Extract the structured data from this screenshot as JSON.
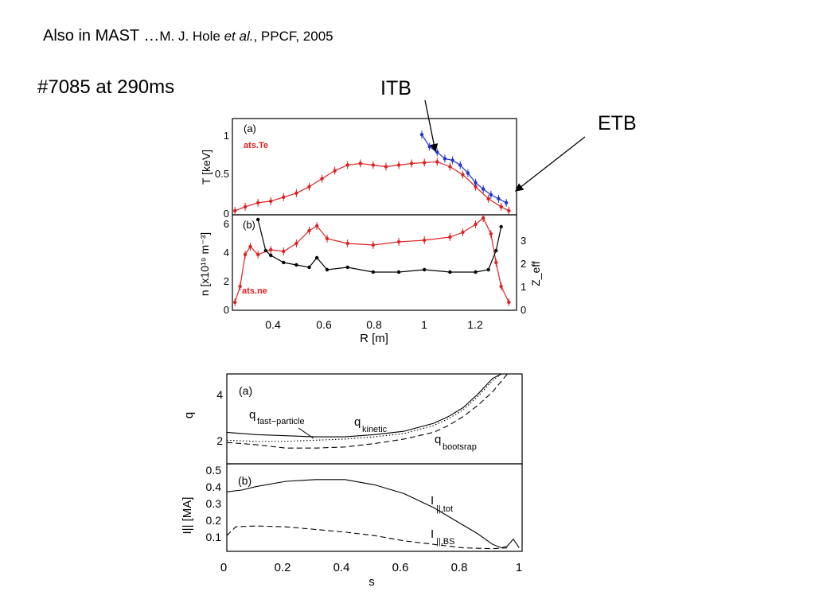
{
  "slide": {
    "title_main": "Also in MAST …",
    "title_ref_pre": "M. J. Hole ",
    "title_ref_em": "et al.",
    "title_ref_post": ", PPCF, 2005",
    "shot_label": "#7085 at 290ms",
    "itb_label": "ITB",
    "etb_label": "ETB"
  },
  "chart_data": [
    {
      "type": "scatter",
      "panel": "(a)",
      "ylabel": "T [keV]",
      "xlim": [
        0.25,
        1.36
      ],
      "ylim": [
        0,
        1.2
      ],
      "yticks": [
        "0",
        "0.5",
        "1"
      ],
      "annotation": "ats.Te",
      "series": [
        {
          "name": "ats.Te",
          "color": "#dd2222",
          "x": [
            0.26,
            0.3,
            0.35,
            0.4,
            0.45,
            0.5,
            0.55,
            0.6,
            0.65,
            0.7,
            0.75,
            0.8,
            0.85,
            0.9,
            0.95,
            1.0,
            1.05,
            1.1,
            1.15,
            1.2,
            1.25,
            1.3,
            1.33
          ],
          "y": [
            0.05,
            0.1,
            0.15,
            0.17,
            0.22,
            0.27,
            0.35,
            0.45,
            0.55,
            0.62,
            0.64,
            0.62,
            0.6,
            0.62,
            0.64,
            0.65,
            0.66,
            0.6,
            0.5,
            0.35,
            0.2,
            0.1,
            0.05
          ]
        },
        {
          "name": "",
          "color": "#2233cc",
          "x": [
            0.99,
            1.02,
            1.05,
            1.08,
            1.11,
            1.14,
            1.17,
            1.2,
            1.23,
            1.26,
            1.29,
            1.32
          ],
          "y": [
            1.0,
            0.85,
            0.78,
            0.7,
            0.68,
            0.62,
            0.52,
            0.4,
            0.32,
            0.25,
            0.2,
            0.15
          ]
        }
      ]
    },
    {
      "type": "scatter",
      "panel": "(b)",
      "ylabel": "n [x10¹⁹ m⁻³]",
      "y2label": "Z_eff",
      "xlabel": "R [m]",
      "xlim": [
        0.25,
        1.36
      ],
      "ylim": [
        0,
        6
      ],
      "y2lim": [
        0,
        4
      ],
      "xticks": [
        "0.4",
        "0.6",
        "0.8",
        "1",
        "1.2"
      ],
      "yticks": [
        "0",
        "2",
        "4",
        "6"
      ],
      "y2ticks": [
        "0",
        "1",
        "2",
        "3"
      ],
      "annotation": "ats.ne",
      "series": [
        {
          "name": "ats.ne",
          "color": "#dd2222",
          "x": [
            0.26,
            0.28,
            0.3,
            0.32,
            0.35,
            0.4,
            0.45,
            0.5,
            0.55,
            0.58,
            0.62,
            0.7,
            0.8,
            0.9,
            1.0,
            1.1,
            1.15,
            1.2,
            1.23,
            1.26,
            1.28,
            1.3,
            1.33
          ],
          "y": [
            0.5,
            1.5,
            3.5,
            4.0,
            3.5,
            3.8,
            3.7,
            4.2,
            5.0,
            5.3,
            4.5,
            4.2,
            4.1,
            4.3,
            4.4,
            4.6,
            4.9,
            5.4,
            5.8,
            4.8,
            3.0,
            1.5,
            0.5
          ]
        },
        {
          "name": "Z_eff",
          "color": "#000000",
          "axis": "y2",
          "x": [
            0.35,
            0.38,
            0.4,
            0.45,
            0.5,
            0.55,
            0.58,
            0.62,
            0.7,
            0.8,
            0.9,
            1.0,
            1.1,
            1.2,
            1.25,
            1.28,
            1.3
          ],
          "y": [
            3.8,
            2.5,
            2.3,
            2.0,
            1.9,
            1.8,
            2.2,
            1.7,
            1.8,
            1.6,
            1.6,
            1.7,
            1.6,
            1.6,
            1.7,
            2.5,
            3.5
          ]
        }
      ]
    },
    {
      "type": "line",
      "panel": "(a)",
      "ylabel": "q",
      "xlim": [
        0,
        1
      ],
      "ylim": [
        1,
        5
      ],
      "yticks": [
        "2",
        "4"
      ],
      "series": [
        {
          "name": "q_fast-particle",
          "style": "solid",
          "x": [
            0,
            0.1,
            0.2,
            0.3,
            0.4,
            0.5,
            0.6,
            0.7,
            0.75,
            0.8,
            0.85,
            0.9,
            0.93
          ],
          "y": [
            2.4,
            2.3,
            2.25,
            2.2,
            2.2,
            2.3,
            2.45,
            2.8,
            3.1,
            3.5,
            4.1,
            4.8,
            5.0
          ]
        },
        {
          "name": "q_kinetic",
          "style": "dotted",
          "x": [
            0,
            0.1,
            0.2,
            0.3,
            0.4,
            0.5,
            0.6,
            0.7,
            0.75,
            0.8,
            0.85,
            0.9,
            0.93
          ],
          "y": [
            2.05,
            2.0,
            2.0,
            2.05,
            2.1,
            2.2,
            2.35,
            2.7,
            3.0,
            3.4,
            4.0,
            4.7,
            5.0
          ]
        },
        {
          "name": "q_bootsrap",
          "style": "dashed",
          "x": [
            0,
            0.1,
            0.2,
            0.3,
            0.4,
            0.5,
            0.6,
            0.7,
            0.75,
            0.8,
            0.85,
            0.9,
            0.95
          ],
          "y": [
            1.95,
            1.85,
            1.7,
            1.7,
            1.75,
            1.9,
            2.1,
            2.4,
            2.7,
            3.1,
            3.6,
            4.2,
            5.0
          ]
        }
      ],
      "labels": {
        "fast": "fast−particle",
        "kinetic": "kinetic",
        "boot": "bootsrap",
        "q": "q"
      }
    },
    {
      "type": "line",
      "panel": "(b)",
      "ylabel": "I|| [MA]",
      "xlabel": "s",
      "xlim": [
        0,
        1
      ],
      "ylim": [
        0,
        0.5
      ],
      "xticks": [
        "0",
        "0.2",
        "0.4",
        "0.6",
        "0.8",
        "1"
      ],
      "yticks": [
        "0.1",
        "0.2",
        "0.3",
        "0.4",
        "0.5"
      ],
      "series": [
        {
          "name": "I||,tot",
          "style": "solid",
          "x": [
            0,
            0.05,
            0.1,
            0.2,
            0.3,
            0.35,
            0.4,
            0.5,
            0.6,
            0.7,
            0.8,
            0.85,
            0.9,
            0.93,
            0.95,
            0.97,
            0.99
          ],
          "y": [
            0.34,
            0.35,
            0.37,
            0.4,
            0.41,
            0.41,
            0.41,
            0.38,
            0.33,
            0.25,
            0.15,
            0.1,
            0.04,
            0.02,
            0.03,
            0.07,
            0.02
          ]
        },
        {
          "name": "I||,BS",
          "style": "dashed",
          "x": [
            0,
            0.03,
            0.1,
            0.2,
            0.3,
            0.4,
            0.5,
            0.6,
            0.7,
            0.8,
            0.9,
            0.95
          ],
          "y": [
            0.09,
            0.14,
            0.145,
            0.14,
            0.125,
            0.11,
            0.09,
            0.06,
            0.04,
            0.02,
            0.015,
            0.02
          ]
        }
      ],
      "labels": {
        "tot": "||,tot",
        "bs": "||,BS",
        "i": "I"
      }
    }
  ]
}
